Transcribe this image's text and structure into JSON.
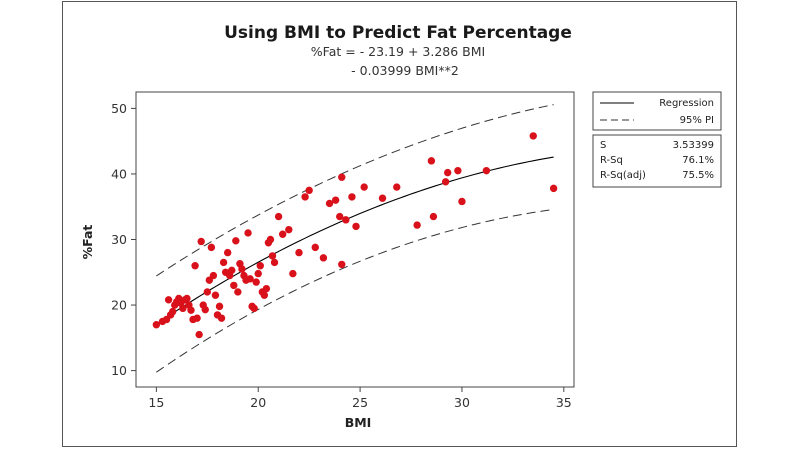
{
  "chart_data": {
    "type": "scatter",
    "title": "Using BMI to Predict Fat Percentage",
    "subtitle_lines": [
      "%Fat =  - 23.19 + 3.286 BMI",
      "- 0.03999 BMI**2"
    ],
    "xlabel": "BMI",
    "ylabel": "%Fat",
    "xlim": [
      14,
      35.5
    ],
    "ylim": [
      7.5,
      52.5
    ],
    "x_ticks": [
      15,
      20,
      25,
      30,
      35
    ],
    "y_ticks": [
      10,
      20,
      30,
      40,
      50
    ],
    "grid": false,
    "colors": {
      "points": "#d9111b",
      "regression": "#000000",
      "interval": "#333333"
    },
    "legend": {
      "placement": "right",
      "entries": [
        {
          "label": "Regression",
          "style": "solid"
        },
        {
          "label": "95% PI",
          "style": "dashed"
        }
      ]
    },
    "stats": [
      {
        "label": "S",
        "value": "3.53399"
      },
      {
        "label": "R-Sq",
        "value": "76.1%"
      },
      {
        "label": "R-Sq(adj)",
        "value": "75.5%"
      }
    ],
    "regression": {
      "intercept": -23.19,
      "b1": 3.286,
      "b2": -0.03999,
      "x_range": [
        15,
        34.5
      ]
    },
    "prediction_interval": {
      "half_width_at_mean": 7.2,
      "half_width_at_ends": 8.0
    },
    "series": [
      {
        "name": "Data",
        "points": [
          [
            15.0,
            17.0
          ],
          [
            15.3,
            17.5
          ],
          [
            15.5,
            17.8
          ],
          [
            15.6,
            20.8
          ],
          [
            15.7,
            18.5
          ],
          [
            15.8,
            19.0
          ],
          [
            15.9,
            20.0
          ],
          [
            16.0,
            20.5
          ],
          [
            16.1,
            21.0
          ],
          [
            16.2,
            20.3
          ],
          [
            16.3,
            19.5
          ],
          [
            16.4,
            20.8
          ],
          [
            16.5,
            21.0
          ],
          [
            16.6,
            20.0
          ],
          [
            16.7,
            19.2
          ],
          [
            16.8,
            17.8
          ],
          [
            16.9,
            26.0
          ],
          [
            17.0,
            18.0
          ],
          [
            17.1,
            15.5
          ],
          [
            17.2,
            29.7
          ],
          [
            17.3,
            20.0
          ],
          [
            17.4,
            19.3
          ],
          [
            17.5,
            22.0
          ],
          [
            17.6,
            23.8
          ],
          [
            17.7,
            28.8
          ],
          [
            17.8,
            24.5
          ],
          [
            17.9,
            21.5
          ],
          [
            18.0,
            18.5
          ],
          [
            18.1,
            19.8
          ],
          [
            18.2,
            18.0
          ],
          [
            18.3,
            26.5
          ],
          [
            18.4,
            25.0
          ],
          [
            18.5,
            28.0
          ],
          [
            18.6,
            24.5
          ],
          [
            18.7,
            25.3
          ],
          [
            18.8,
            23.0
          ],
          [
            18.9,
            29.8
          ],
          [
            19.0,
            22.0
          ],
          [
            19.1,
            26.3
          ],
          [
            19.2,
            25.5
          ],
          [
            19.3,
            24.5
          ],
          [
            19.4,
            23.8
          ],
          [
            19.5,
            31.0
          ],
          [
            19.6,
            24.0
          ],
          [
            19.7,
            19.8
          ],
          [
            19.8,
            19.5
          ],
          [
            19.9,
            23.5
          ],
          [
            20.0,
            24.8
          ],
          [
            20.1,
            26.0
          ],
          [
            20.2,
            22.0
          ],
          [
            20.3,
            21.5
          ],
          [
            20.4,
            22.5
          ],
          [
            20.5,
            29.5
          ],
          [
            20.6,
            30.0
          ],
          [
            20.7,
            27.5
          ],
          [
            20.8,
            26.5
          ],
          [
            21.0,
            33.5
          ],
          [
            21.2,
            30.8
          ],
          [
            21.5,
            31.5
          ],
          [
            21.7,
            24.8
          ],
          [
            22.0,
            28.0
          ],
          [
            22.3,
            36.5
          ],
          [
            22.5,
            37.5
          ],
          [
            22.8,
            28.8
          ],
          [
            23.2,
            27.2
          ],
          [
            23.5,
            35.5
          ],
          [
            23.8,
            36.0
          ],
          [
            24.0,
            33.5
          ],
          [
            24.1,
            39.5
          ],
          [
            24.1,
            26.2
          ],
          [
            24.3,
            33.0
          ],
          [
            24.6,
            36.5
          ],
          [
            24.8,
            32.0
          ],
          [
            25.2,
            38.0
          ],
          [
            26.1,
            36.3
          ],
          [
            26.8,
            38.0
          ],
          [
            27.8,
            32.2
          ],
          [
            28.5,
            42.0
          ],
          [
            28.6,
            33.5
          ],
          [
            29.2,
            38.8
          ],
          [
            29.3,
            40.2
          ],
          [
            29.8,
            40.5
          ],
          [
            30.0,
            35.8
          ],
          [
            31.2,
            40.5
          ],
          [
            33.5,
            45.8
          ],
          [
            34.5,
            37.8
          ]
        ]
      }
    ]
  }
}
